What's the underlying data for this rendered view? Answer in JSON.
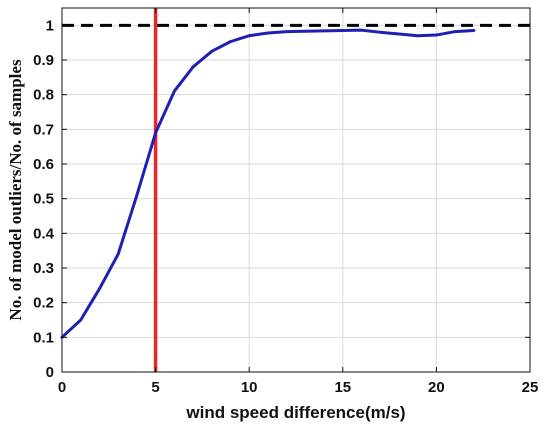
{
  "chart_data": {
    "type": "line",
    "xlabel": "wind speed difference(m/s)",
    "ylabel": "No. of model outliers/No. of samples",
    "xlim": [
      0,
      25
    ],
    "ylim": [
      0,
      1.05
    ],
    "x_ticks": [
      0,
      5,
      10,
      15,
      20,
      25
    ],
    "y_ticks": [
      0,
      0.1,
      0.2,
      0.3,
      0.4,
      0.5,
      0.6,
      0.7,
      0.8,
      0.9,
      1
    ],
    "grid": true,
    "series": [
      {
        "color": "#1f1fb4",
        "x": [
          0,
          1,
          2,
          3,
          4,
          5,
          6,
          7,
          8,
          9,
          10,
          11,
          12,
          13,
          14,
          15,
          16,
          17,
          18,
          19,
          20,
          21,
          22
        ],
        "y": [
          0.1,
          0.15,
          0.24,
          0.34,
          0.51,
          0.69,
          0.81,
          0.88,
          0.925,
          0.953,
          0.97,
          0.978,
          0.982,
          0.983,
          0.984,
          0.985,
          0.986,
          0.98,
          0.975,
          0.97,
          0.972,
          0.982,
          0.985
        ]
      }
    ],
    "reference_lines": [
      {
        "orientation": "horizontal",
        "value": 1.0,
        "style": "dashed",
        "color": "#000000"
      },
      {
        "orientation": "vertical",
        "value": 5,
        "style": "solid",
        "color": "#e8262b"
      }
    ]
  }
}
